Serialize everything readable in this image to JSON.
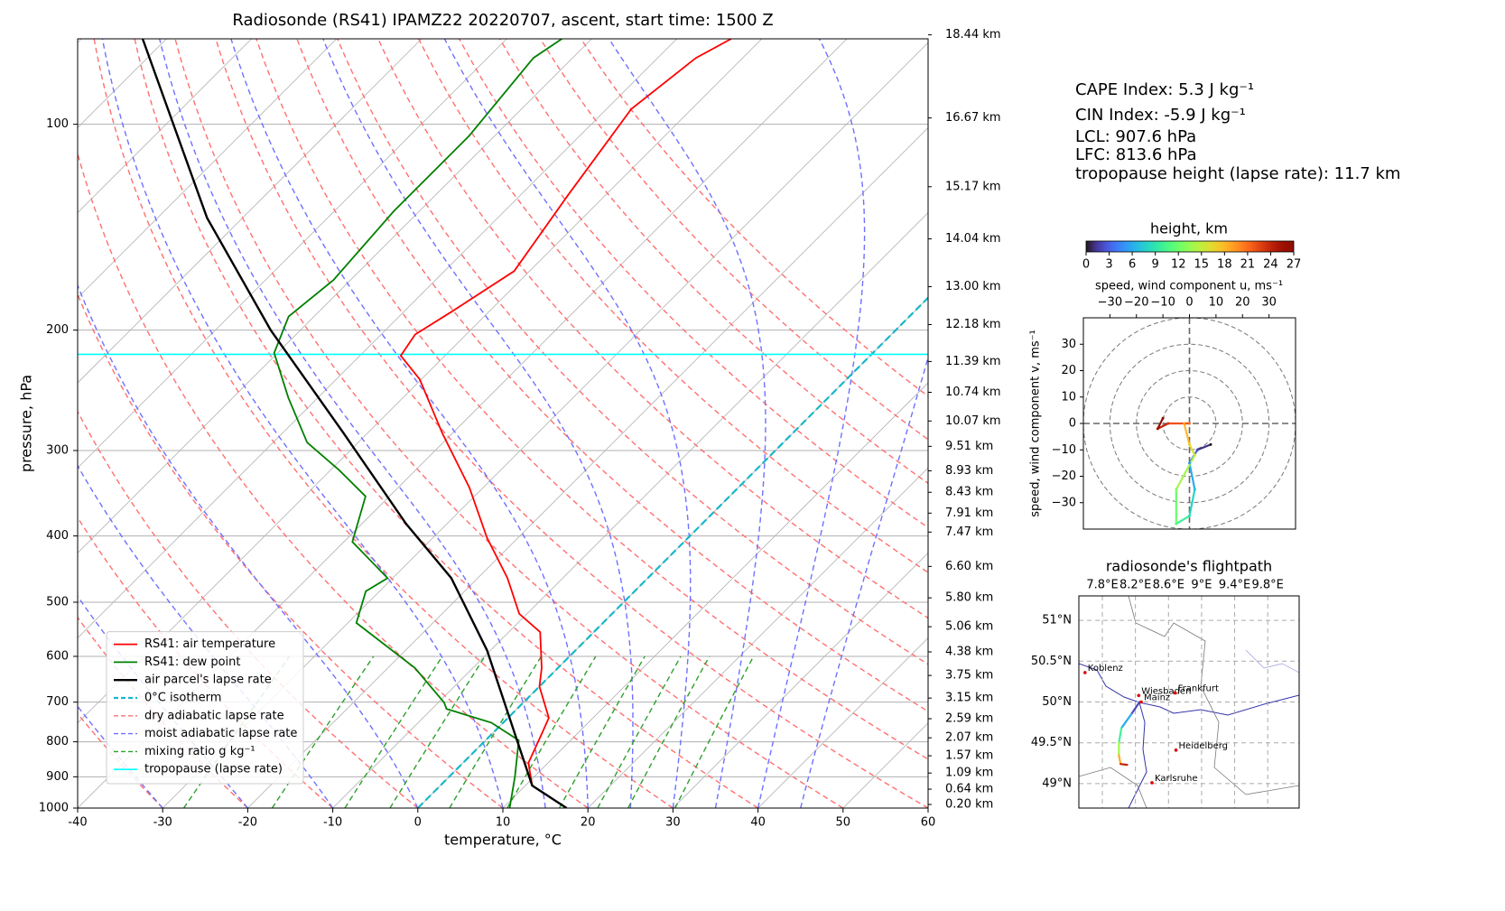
{
  "chart_data": [
    {
      "type": "skewt",
      "title": "Radiosonde (RS41) IPAMZ22 20220707, ascent, start time: 1500 Z",
      "xlabel": "temperature, °C",
      "ylabel": "pressure, hPa",
      "xlim": [
        -40,
        60
      ],
      "ylim": [
        1000,
        75
      ],
      "log_y": true,
      "grid": true,
      "xticks": [
        -40,
        -30,
        -20,
        -10,
        0,
        10,
        20,
        30,
        40,
        50,
        60
      ],
      "yticks": [
        100,
        200,
        300,
        400,
        500,
        600,
        700,
        800,
        900,
        1000
      ],
      "legend": "lower left",
      "series": [
        {
          "name": "RS41: air temperature",
          "color": "#ff0000",
          "pressure": [
            1000,
            927,
            859,
            777,
            738,
            664,
            624,
            553,
            520,
            461,
            402,
            340,
            283,
            236,
            218,
            203,
            188,
            164,
            127,
            95,
            80,
            75
          ],
          "values": [
            17.5,
            10.8,
            7.7,
            5.8,
            4.8,
            0,
            -1.9,
            -6.3,
            -10.9,
            -16.5,
            -23.7,
            -31.6,
            -41.2,
            -50.2,
            -55.2,
            -56.0,
            -54.4,
            -51.8,
            -54.4,
            -57.1,
            -55.5,
            -53.6
          ]
        },
        {
          "name": "RS41: dew point",
          "color": "#008000",
          "pressure": [
            1000,
            899,
            796,
            750,
            716,
            701,
            624,
            536,
            482,
            461,
            408,
            350,
            320,
            292,
            251,
            216,
            191,
            169,
            134,
            104,
            80,
            75
          ],
          "values": [
            10.8,
            7.7,
            3.9,
            -1.4,
            -8.3,
            -9.3,
            -16.8,
            -29.0,
            -31.6,
            -30.6,
            -39.0,
            -42.8,
            -49.1,
            -56.0,
            -63.5,
            -70.4,
            -73.0,
            -72.0,
            -73.0,
            -73.0,
            -74.6,
            -73.5
          ]
        },
        {
          "name": "air parcel's lapse rate",
          "color": "#000000",
          "pressure": [
            1000,
            927,
            796,
            588,
            461,
            384,
            283,
            200,
            137,
            75
          ],
          "values": [
            17.5,
            10.8,
            3.7,
            -10.4,
            -23.1,
            -34.8,
            -52.8,
            -73.5,
            -94.2,
            -122.8
          ]
        }
      ],
      "isotherm": {
        "name": "0°C isotherm",
        "value": 0,
        "color": "#17b8c8"
      },
      "isotherm_grid": {
        "step": 10,
        "color": "#b0b0b0"
      },
      "dry_adiabats": {
        "name": "dry adiabatic lapse rate",
        "color": "#ff7070",
        "values": [
          -30,
          -20,
          -10,
          0,
          10,
          20,
          30,
          40,
          50,
          60,
          70,
          80,
          90,
          100,
          110,
          120,
          130,
          140,
          150
        ]
      },
      "moist_adiabats": {
        "name": "moist adiabatic lapse rate",
        "color": "#7070ff",
        "values": [
          -30,
          -20,
          -10,
          0,
          10,
          15,
          20,
          25,
          30,
          35,
          40,
          45
        ]
      },
      "mixing_ratio": {
        "name": "mixing ratio g kg⁻¹",
        "color": "#2ca02c",
        "top": 600,
        "values": [
          0.4,
          1,
          2,
          3,
          5,
          8,
          12,
          16,
          20,
          28
        ]
      },
      "tropopause": {
        "name": "tropopause (lapse rate)",
        "color": "#00ffff",
        "pressure": 217
      },
      "height_labels": [
        {
          "label": "18.44 km",
          "pressure": 74.0
        },
        {
          "label": "16.67 km",
          "pressure": 97.9
        },
        {
          "label": "15.17 km",
          "pressure": 123.4
        },
        {
          "label": "14.04 km",
          "pressure": 147.1
        },
        {
          "label": "13.00 km",
          "pressure": 172.8
        },
        {
          "label": "12.18 km",
          "pressure": 196.3
        },
        {
          "label": "11.39 km",
          "pressure": 222.3
        },
        {
          "label": "10.74 km",
          "pressure": 246.6
        },
        {
          "label": "10.07 km",
          "pressure": 271.6
        },
        {
          "label": "9.51 km",
          "pressure": 295.8
        },
        {
          "label": "8.93 km",
          "pressure": 321.2
        },
        {
          "label": "8.43 km",
          "pressure": 345.3
        },
        {
          "label": "7.91 km",
          "pressure": 370.4
        },
        {
          "label": "7.47 km",
          "pressure": 394.8
        },
        {
          "label": "6.60 km",
          "pressure": 443.2
        },
        {
          "label": "5.80 km",
          "pressure": 492.7
        },
        {
          "label": "5.06 km",
          "pressure": 543.0
        },
        {
          "label": "4.38 km",
          "pressure": 591.0
        },
        {
          "label": "3.75 km",
          "pressure": 639.8
        },
        {
          "label": "3.15 km",
          "pressure": 690.4
        },
        {
          "label": "2.59 km",
          "pressure": 740.2
        },
        {
          "label": "2.07 km",
          "pressure": 789.3
        },
        {
          "label": "1.57 km",
          "pressure": 838.5
        },
        {
          "label": "1.09 km",
          "pressure": 888.7
        },
        {
          "label": "0.64 km",
          "pressure": 938.3
        },
        {
          "label": "0.20 km",
          "pressure": 987.9
        }
      ]
    },
    {
      "type": "hodograph",
      "xlabel": "speed, wind component u, ms⁻¹",
      "ylabel": "speed, wind component v, ms⁻¹",
      "xlim": [
        -40,
        40
      ],
      "ylim": [
        -40,
        40
      ],
      "xticks": [
        {
          "value": -30,
          "label": "−30"
        },
        {
          "value": -20,
          "label": "−20"
        },
        {
          "value": -10,
          "label": "−10"
        },
        0,
        10,
        20,
        30
      ],
      "yticks": [
        {
          "value": -30,
          "label": "−30"
        },
        {
          "value": -20,
          "label": "−20"
        },
        {
          "value": -10,
          "label": "−10"
        },
        0,
        10,
        20,
        30
      ],
      "circles": [
        10,
        20,
        30,
        40
      ],
      "u": [
        8,
        3,
        0,
        2,
        0,
        -5,
        -5,
        2,
        0,
        -2,
        0,
        -8,
        -12,
        -10
      ],
      "v": [
        -8,
        -10,
        -15,
        -25,
        -35,
        -38,
        -25,
        -12,
        -8,
        0,
        0,
        0,
        -2,
        2
      ],
      "height": [
        0,
        2,
        5,
        7,
        9,
        11,
        13,
        15,
        17,
        19,
        21,
        23,
        25,
        27
      ]
    }
  ],
  "colorbar": {
    "title": "height, km",
    "lim": [
      0,
      27
    ],
    "ticks": [
      0,
      3,
      6,
      9,
      12,
      15,
      18,
      21,
      24,
      27
    ],
    "colormap": "turbo"
  },
  "indices": [
    "CAPE Index: 5.3 J kg⁻¹",
    "CIN Index: -5.9 J kg⁻¹",
    "LCL: 907.6 hPa",
    "LFC: 813.6 hPa",
    "tropopause height (lapse rate): 11.7 km"
  ],
  "map": {
    "title": "radiosonde's flightpath",
    "xlim": [
      7.516,
      10.18
    ],
    "ylim": [
      48.7,
      51.3
    ],
    "xticks": [
      {
        "value": 7.8,
        "label": "7.8°E"
      },
      {
        "value": 8.2,
        "label": "8.2°E"
      },
      {
        "value": 8.6,
        "label": "8.6°E"
      },
      {
        "value": 9,
        "label": "9°E"
      },
      {
        "value": 9.4,
        "label": "9.4°E"
      },
      {
        "value": 9.8,
        "label": "9.8°E"
      }
    ],
    "yticks": [
      {
        "value": 51,
        "label": "51°N"
      },
      {
        "value": 50.5,
        "label": "50.5°N"
      },
      {
        "value": 50,
        "label": "50°N"
      },
      {
        "value": 49.5,
        "label": "49.5°N"
      },
      {
        "value": 49,
        "label": "49°N"
      }
    ],
    "cities": [
      {
        "name": "Koblenz",
        "lon": 7.59,
        "lat": 50.36
      },
      {
        "name": "Wiesbaden",
        "lon": 8.24,
        "lat": 50.08
      },
      {
        "name": "Mainz",
        "lon": 8.27,
        "lat": 50.0
      },
      {
        "name": "Frankfurt",
        "lon": 8.68,
        "lat": 50.11
      },
      {
        "name": "Heidelberg",
        "lon": 8.69,
        "lat": 49.41
      },
      {
        "name": "Karlsruhe",
        "lon": 8.4,
        "lat": 49.01
      }
    ],
    "track": {
      "lon": [
        8.25,
        8.15,
        8.03,
        8.0,
        8.0,
        8.02,
        8.1
      ],
      "lat": [
        50.0,
        49.85,
        49.68,
        49.5,
        49.35,
        49.24,
        49.23
      ],
      "height": [
        0,
        4,
        8,
        12,
        16,
        21,
        27
      ]
    }
  }
}
